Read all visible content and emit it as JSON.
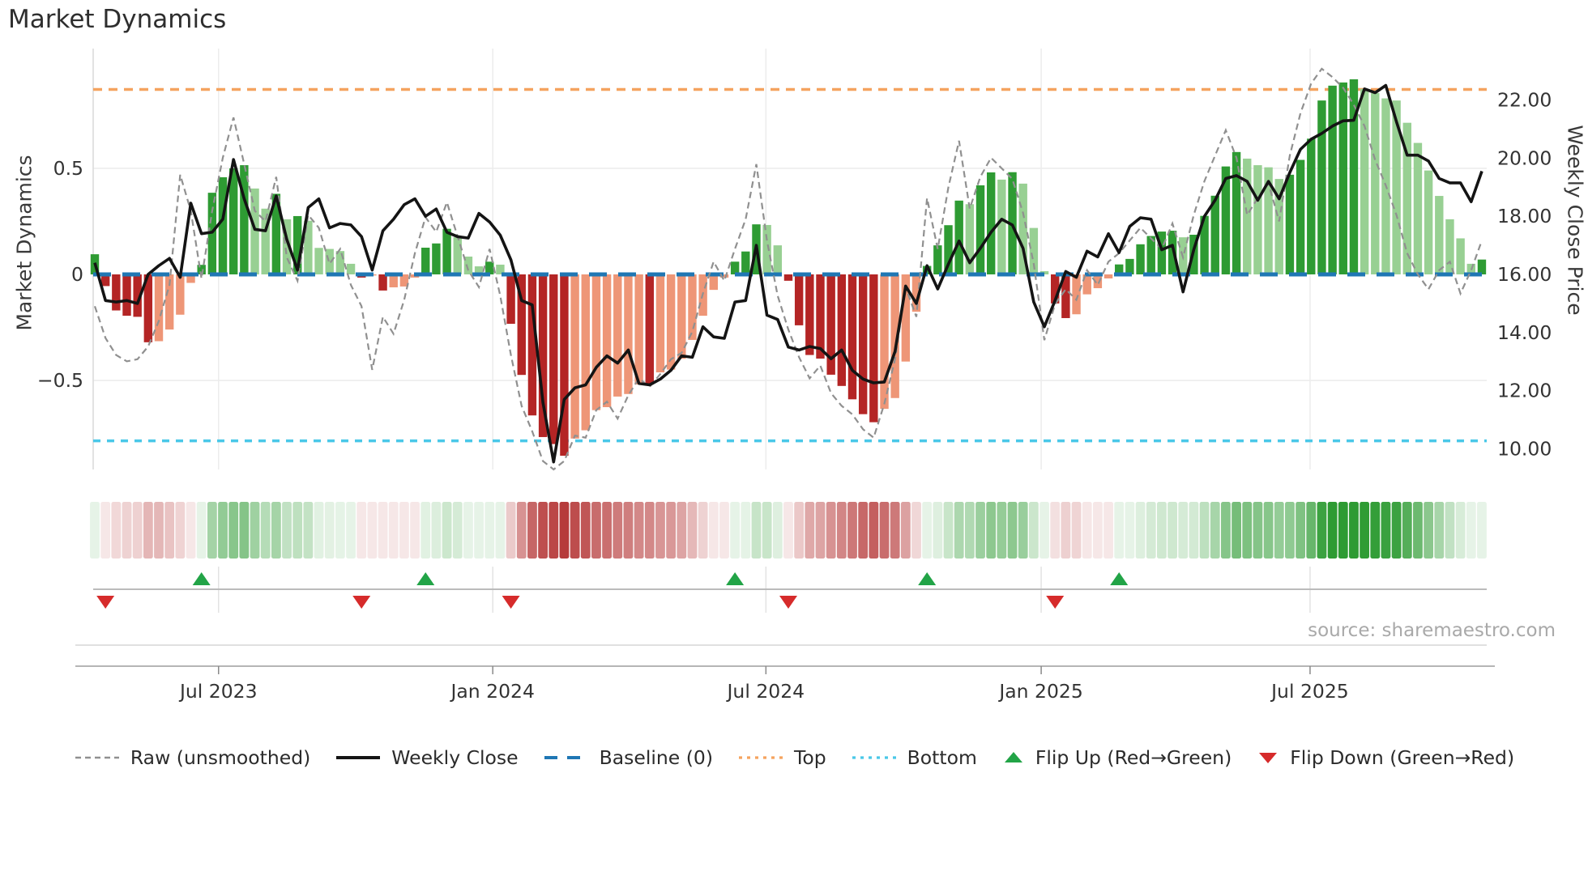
{
  "title": "Market Dynamics",
  "source": "source: sharemaestro.com",
  "left_axis": {
    "label": "Market Dynamics",
    "ticks": [
      "0.5",
      "0",
      "−0.5"
    ],
    "tick_values": [
      0.5,
      0,
      -0.5
    ]
  },
  "right_axis": {
    "label": "Weekly Close Price",
    "ticks": [
      "22.00",
      "20.00",
      "18.00",
      "16.00",
      "14.00",
      "12.00",
      "10.00"
    ],
    "tick_values": [
      22,
      20,
      18,
      16,
      14,
      12,
      10
    ]
  },
  "x_axis": {
    "ticks": [
      {
        "label": "Jul 2023",
        "week": 11.6
      },
      {
        "label": "Jan 2024",
        "week": 37.3
      },
      {
        "label": "Jul 2024",
        "week": 62.9
      },
      {
        "label": "Jan 2025",
        "week": 88.7
      },
      {
        "label": "Jul 2025",
        "week": 113.9
      }
    ]
  },
  "legend": [
    {
      "label": "Raw (unsmoothed)",
      "type": "dash-gray"
    },
    {
      "label": "Weekly Close",
      "type": "solid-black"
    },
    {
      "label": "Baseline (0)",
      "type": "dash-blue"
    },
    {
      "label": "Top",
      "type": "dot-orange"
    },
    {
      "label": "Bottom",
      "type": "dot-cyan"
    },
    {
      "label": "Flip Up (Red→Green)",
      "type": "tri-up"
    },
    {
      "label": "Flip Down (Green→Red)",
      "type": "tri-down"
    }
  ],
  "colors": {
    "bar_green": "#2e9b33",
    "bar_green_light": "#98d093",
    "bar_red": "#b42525",
    "bar_red_light": "#ee9677",
    "baseline_blue": "#1f77b4",
    "top_orange": "#f5a35f",
    "bottom_cyan": "#4ac8e8",
    "raw_gray": "#909090",
    "close_black": "#141414",
    "flip_up_green": "#22a447",
    "flip_down_red": "#d62b2b",
    "heat_green": "#2e9b33",
    "heat_red": "#b43535",
    "grid": "#ececec",
    "axis_text": "#333333"
  },
  "chart_data": {
    "type": "combo",
    "title": "Market Dynamics",
    "x_unit": "weekly, Apr 2023 – Oct 2025",
    "osc_axis": {
      "label": "Market Dynamics",
      "ticks": [
        0.5,
        0,
        -0.5
      ],
      "ylim": [
        -0.95,
        1.05
      ]
    },
    "price_axis": {
      "label": "Weekly Close Price",
      "ticks": [
        22,
        20,
        18,
        16,
        14,
        12,
        10
      ]
    },
    "baseline": 0,
    "top_line": 0.872,
    "bottom_line": -0.785,
    "flip_up_weeks": [
      10,
      31,
      60,
      78,
      96
    ],
    "flip_down_weeks": [
      1,
      25,
      39,
      65,
      90
    ],
    "series": {
      "oscillator": [
        0.095,
        -0.055,
        -0.17,
        -0.195,
        -0.2,
        -0.32,
        -0.315,
        -0.26,
        -0.19,
        -0.04,
        0.045,
        0.385,
        0.458,
        0.5,
        0.515,
        0.405,
        0.31,
        0.38,
        0.26,
        0.275,
        0.253,
        0.125,
        0.12,
        0.11,
        0.05,
        -0.015,
        -0.005,
        -0.076,
        -0.061,
        -0.057,
        -0.015,
        0.126,
        0.146,
        0.215,
        0.175,
        0.084,
        0.038,
        0.06,
        0.046,
        -0.233,
        -0.474,
        -0.665,
        -0.767,
        -0.8,
        -0.855,
        -0.774,
        -0.735,
        -0.64,
        -0.626,
        -0.576,
        -0.564,
        -0.519,
        -0.519,
        -0.462,
        -0.449,
        -0.398,
        -0.309,
        -0.195,
        -0.073,
        -0.015,
        0.06,
        0.108,
        0.236,
        0.233,
        0.137,
        -0.03,
        -0.24,
        -0.38,
        -0.397,
        -0.473,
        -0.526,
        -0.589,
        -0.659,
        -0.697,
        -0.634,
        -0.583,
        -0.411,
        -0.176,
        0.04,
        0.137,
        0.232,
        0.348,
        0.331,
        0.42,
        0.481,
        0.447,
        0.482,
        0.428,
        0.219,
        0.015,
        -0.137,
        -0.206,
        -0.188,
        -0.094,
        -0.065,
        -0.019,
        0.047,
        0.073,
        0.142,
        0.181,
        0.202,
        0.206,
        0.175,
        0.187,
        0.276,
        0.371,
        0.509,
        0.577,
        0.546,
        0.515,
        0.505,
        0.45,
        0.47,
        0.54,
        0.64,
        0.82,
        0.89,
        0.905,
        0.92,
        0.875,
        0.855,
        0.83,
        0.82,
        0.715,
        0.62,
        0.49,
        0.37,
        0.26,
        0.17,
        0.05,
        0.07
      ],
      "weekly_close": [
        16.4,
        15.1,
        15.05,
        15.1,
        15.0,
        16.0,
        16.3,
        16.55,
        15.9,
        18.45,
        17.4,
        17.45,
        17.9,
        19.95,
        18.6,
        17.55,
        17.5,
        18.7,
        17.2,
        16.15,
        18.3,
        18.6,
        17.6,
        17.75,
        17.7,
        17.3,
        16.15,
        17.5,
        17.9,
        18.4,
        18.6,
        18.0,
        18.25,
        17.45,
        17.3,
        17.25,
        18.1,
        17.8,
        17.35,
        16.5,
        15.1,
        14.95,
        11.6,
        9.55,
        11.7,
        12.1,
        12.2,
        12.8,
        13.2,
        12.95,
        13.4,
        12.25,
        12.2,
        12.4,
        12.7,
        13.2,
        13.15,
        14.2,
        13.85,
        13.8,
        15.05,
        15.1,
        17.0,
        14.6,
        14.45,
        13.5,
        13.4,
        13.52,
        13.45,
        13.1,
        13.4,
        12.7,
        12.4,
        12.27,
        12.3,
        13.35,
        15.6,
        15.0,
        16.3,
        15.5,
        16.35,
        17.15,
        16.4,
        16.9,
        17.45,
        17.9,
        17.7,
        16.9,
        15.05,
        14.2,
        15.1,
        16.1,
        15.9,
        16.8,
        16.6,
        17.4,
        16.75,
        17.65,
        17.95,
        17.9,
        16.85,
        17.0,
        15.4,
        16.85,
        18.0,
        18.55,
        19.3,
        19.4,
        19.2,
        18.55,
        19.2,
        18.6,
        19.5,
        20.3,
        20.65,
        20.85,
        21.1,
        21.28,
        21.3,
        22.38,
        22.25,
        22.5,
        21.25,
        20.1,
        20.1,
        19.9,
        19.3,
        19.15,
        19.15,
        18.5,
        19.55
      ],
      "raw": [
        -0.15,
        -0.3,
        -0.38,
        -0.41,
        -0.4,
        -0.34,
        -0.22,
        -0.05,
        0.47,
        0.3,
        -0.02,
        0.3,
        0.55,
        0.74,
        0.52,
        0.3,
        0.25,
        0.46,
        0.08,
        -0.03,
        0.28,
        0.22,
        0.05,
        0.12,
        -0.05,
        -0.15,
        -0.45,
        -0.2,
        -0.28,
        -0.12,
        0.1,
        0.27,
        0.2,
        0.34,
        0.18,
        0.02,
        -0.06,
        0.12,
        -0.1,
        -0.38,
        -0.62,
        -0.74,
        -0.88,
        -0.92,
        -0.88,
        -0.76,
        -0.77,
        -0.64,
        -0.6,
        -0.68,
        -0.57,
        -0.49,
        -0.53,
        -0.47,
        -0.4,
        -0.37,
        -0.27,
        -0.09,
        0.06,
        -0.03,
        0.12,
        0.26,
        0.52,
        0.16,
        -0.1,
        -0.26,
        -0.39,
        -0.49,
        -0.43,
        -0.56,
        -0.62,
        -0.66,
        -0.73,
        -0.77,
        -0.61,
        -0.4,
        -0.06,
        -0.2,
        0.36,
        0.12,
        0.41,
        0.63,
        0.31,
        0.46,
        0.55,
        0.5,
        0.45,
        0.29,
        0.05,
        -0.31,
        -0.14,
        -0.07,
        -0.12,
        0.02,
        -0.05,
        0.06,
        0.1,
        0.16,
        0.22,
        0.17,
        0.12,
        0.24,
        0.08,
        0.28,
        0.44,
        0.56,
        0.68,
        0.55,
        0.28,
        0.36,
        0.43,
        0.25,
        0.56,
        0.76,
        0.9,
        0.97,
        0.93,
        0.88,
        0.8,
        0.7,
        0.54,
        0.42,
        0.28,
        0.1,
        0.0,
        -0.07,
        0.02,
        0.06,
        -0.09,
        0.02,
        0.16
      ]
    }
  }
}
